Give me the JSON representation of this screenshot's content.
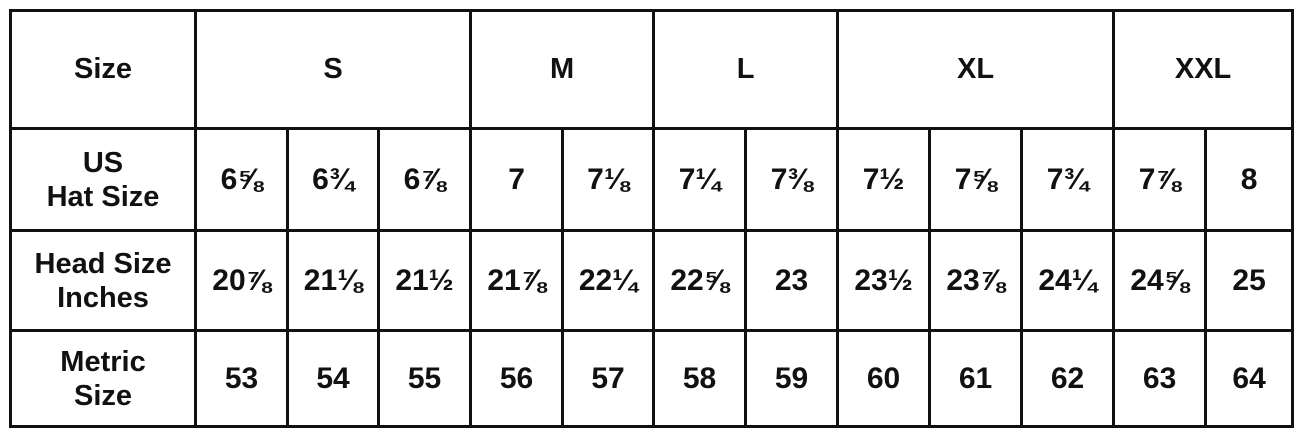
{
  "header": {
    "label": "Size",
    "groups": [
      {
        "label": "S",
        "span": 3
      },
      {
        "label": "M",
        "span": 2
      },
      {
        "label": "L",
        "span": 2
      },
      {
        "label": "XL",
        "span": 3
      },
      {
        "label": "XXL",
        "span": 2
      }
    ]
  },
  "rows": [
    {
      "label_line1": "US",
      "label_line2": "Hat Size",
      "values": [
        "6⅝",
        "6¾",
        "6⅞",
        "7",
        "7⅛",
        "7¼",
        "7⅜",
        "7½",
        "7⅝",
        "7¾",
        "7⅞",
        "8"
      ]
    },
    {
      "label_line1": "Head Size",
      "label_line2": "Inches",
      "values": [
        "20⅞",
        "21⅛",
        "21½",
        "21⅞",
        "22¼",
        "22⅝",
        "23",
        "23½",
        "23⅞",
        "24¼",
        "24⅝",
        "25"
      ]
    },
    {
      "label_line1": "Metric",
      "label_line2": "Size",
      "values": [
        "53",
        "54",
        "55",
        "56",
        "57",
        "58",
        "59",
        "60",
        "61",
        "62",
        "63",
        "64"
      ]
    }
  ]
}
